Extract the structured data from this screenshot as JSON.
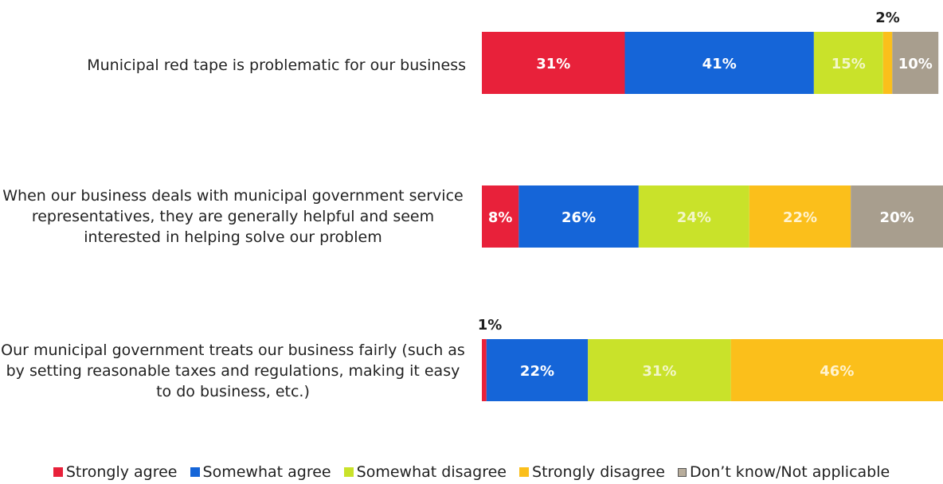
{
  "chart_data": {
    "type": "bar",
    "stacked": true,
    "orientation": "horizontal",
    "xlim": [
      0,
      100
    ],
    "categories": [
      "Municipal red tape is problematic for our business",
      "When our business deals with municipal government service representatives, they are generally helpful and seem interested in helping solve our problem",
      "Our municipal government treats our business fairly (such as by setting reasonable taxes and regulations, making it easy to do business, etc.)"
    ],
    "series": [
      {
        "name": "Strongly agree",
        "color": "#e8213a",
        "values": [
          31,
          8,
          1
        ],
        "labels": [
          "31%",
          "8%",
          "1%"
        ]
      },
      {
        "name": "Somewhat agree",
        "color": "#1565d8",
        "values": [
          41,
          26,
          22
        ],
        "labels": [
          "41%",
          "26%",
          "22%"
        ]
      },
      {
        "name": "Somewhat disagree",
        "color": "#c9e22a",
        "values": [
          15,
          24,
          31
        ],
        "labels": [
          "15%",
          "24%",
          "31%"
        ]
      },
      {
        "name": "Strongly disagree",
        "color": "#fbbf1b",
        "values": [
          2,
          22,
          46
        ],
        "labels": [
          "2%",
          "22%",
          "46%"
        ]
      },
      {
        "name": "Don’t know/Not applicable",
        "color": "#a89e8e",
        "values": [
          10,
          20,
          0
        ],
        "labels": [
          "10%",
          "20%",
          ""
        ]
      }
    ],
    "legend_position": "bottom",
    "grid": false
  },
  "row_labels": {
    "r1": "Municipal red tape is problematic for our business",
    "r2_l1": "When our business deals with municipal government service",
    "r2_l2": "representatives, they are generally helpful and seem",
    "r2_l3": "interested in helping solve our problem",
    "r3_l1": "Our municipal government treats our business fairly (such as",
    "r3_l2": "by setting reasonable taxes and regulations, making it easy",
    "r3_l3": "to do business, etc.)"
  },
  "legend": {
    "strongly_agree": "Strongly agree",
    "somewhat_agree": "Somewhat agree",
    "somewhat_disagree": "Somewhat disagree",
    "strongly_disagree": "Strongly disagree",
    "dont_know": "Don’t know/Not applicable"
  }
}
